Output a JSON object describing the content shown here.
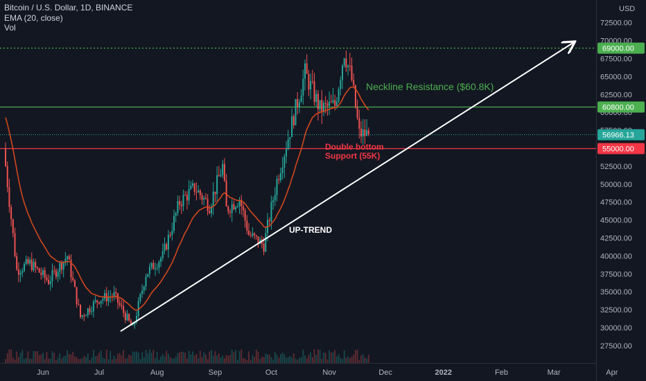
{
  "legend": {
    "symbol_line": "Bitcoin / U.S. Dollar, 1D, BINANCE",
    "ema_line": "EMA (20, close)",
    "vol_line": "Vol"
  },
  "annotations": {
    "neckline": "Neckline Resistance ($60.8K)",
    "double_bottom_1": "Double bottom",
    "double_bottom_2": "Support (55K)",
    "uptrend": "UP-TREND"
  },
  "colors": {
    "background": "#131722",
    "up_candle": "#26a69a",
    "down_candle": "#ef5350",
    "ema": "#d2481d",
    "resistance": "#4caf50",
    "support": "#f23645",
    "ath_line": "#4caf50",
    "trendline": "#ffffff"
  },
  "chart_data": {
    "type": "candlestick",
    "title": "Bitcoin / U.S. Dollar, 1D, BINANCE",
    "y_unit": "USD",
    "ylim": [
      25500,
      73000
    ],
    "y_ticks": [
      72500,
      70000,
      67500,
      65000,
      62500,
      60000,
      57500,
      55000,
      52500,
      50000,
      47500,
      45000,
      42500,
      40000,
      37500,
      35000,
      32500,
      30000,
      27500
    ],
    "x_ticks": [
      "Jun",
      "Jul",
      "Aug",
      "Sep",
      "Oct",
      "Nov",
      "Dec",
      "2022",
      "Feb",
      "Mar",
      "Apr"
    ],
    "price_waypoints": [
      {
        "date": "2021-05-12",
        "price": 55000
      },
      {
        "date": "2021-05-19",
        "price": 38000
      },
      {
        "date": "2021-05-26",
        "price": 39000
      },
      {
        "date": "2021-06-05",
        "price": 36500
      },
      {
        "date": "2021-06-15",
        "price": 40000
      },
      {
        "date": "2021-06-22",
        "price": 31500
      },
      {
        "date": "2021-07-02",
        "price": 34000
      },
      {
        "date": "2021-07-10",
        "price": 34500
      },
      {
        "date": "2021-07-20",
        "price": 29800
      },
      {
        "date": "2021-07-27",
        "price": 37500
      },
      {
        "date": "2021-08-05",
        "price": 40000
      },
      {
        "date": "2021-08-14",
        "price": 47500
      },
      {
        "date": "2021-08-22",
        "price": 49500
      },
      {
        "date": "2021-08-30",
        "price": 47000
      },
      {
        "date": "2021-09-06",
        "price": 52500
      },
      {
        "date": "2021-09-08",
        "price": 46500
      },
      {
        "date": "2021-09-15",
        "price": 48000
      },
      {
        "date": "2021-09-20",
        "price": 43000
      },
      {
        "date": "2021-09-28",
        "price": 41500
      },
      {
        "date": "2021-10-05",
        "price": 50500
      },
      {
        "date": "2021-10-15",
        "price": 60500
      },
      {
        "date": "2021-10-20",
        "price": 65500
      },
      {
        "date": "2021-10-28",
        "price": 60500
      },
      {
        "date": "2021-11-05",
        "price": 61000
      },
      {
        "date": "2021-11-10",
        "price": 68500
      },
      {
        "date": "2021-11-14",
        "price": 64500
      },
      {
        "date": "2021-11-18",
        "price": 57000
      },
      {
        "date": "2021-11-22",
        "price": 56966.13
      }
    ],
    "ema_period": 20,
    "horizontal_levels": [
      {
        "price": 69000,
        "label": "69000.00",
        "style": "dotted",
        "color": "#4caf50"
      },
      {
        "price": 60800,
        "label": "60800.00",
        "style": "solid",
        "color": "#4caf50"
      },
      {
        "price": 55000,
        "label": "55000.00",
        "style": "solid",
        "color": "#f23645"
      }
    ],
    "last_price": {
      "value": 56966.13,
      "label": "56966.13"
    },
    "trendline": {
      "from": {
        "date": "2021-07-20",
        "price": 29500
      },
      "to": {
        "date": "2022-03-25",
        "price": 69000
      }
    }
  }
}
